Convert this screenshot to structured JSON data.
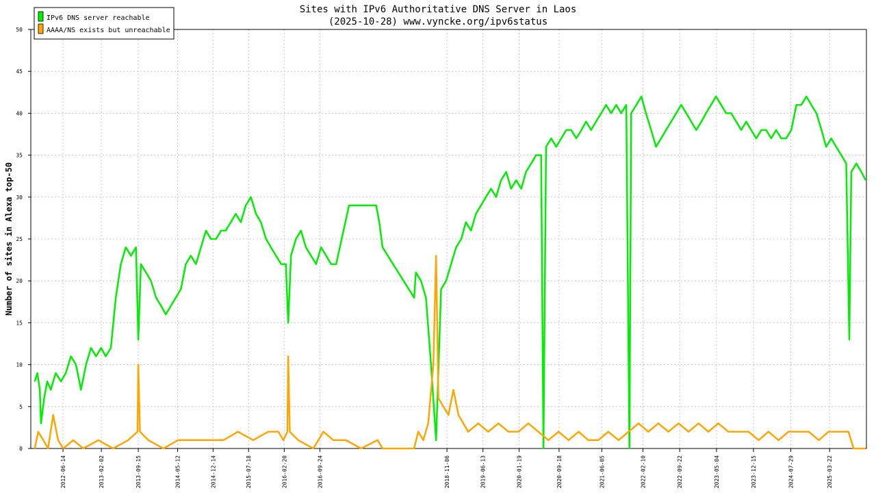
{
  "chart_data": {
    "type": "line",
    "title": "Sites with IPv6 Authoritative DNS Server in Laos",
    "subtitle": "(2025-10-28) www.vyncke.org/ipv6status",
    "xlabel": "",
    "ylabel": "Number of sites in Alexa top-50",
    "ylim": [
      0,
      50
    ],
    "yticks": [
      0,
      5,
      10,
      15,
      20,
      25,
      30,
      35,
      40,
      45,
      50
    ],
    "x_type": "date",
    "x_range": [
      "2011-12-01",
      "2025-11-01"
    ],
    "x_tick_labels": [
      "2012-06-14",
      "2013-02-02",
      "2013-09-15",
      "2014-05-12",
      "2014-12-14",
      "2015-07-18",
      "2016-02-20",
      "2016-09-24",
      "2018-11-06",
      "2019-06-13",
      "2020-01-19",
      "2020-09-18",
      "2021-06-05",
      "2022-02-10",
      "2022-09-22",
      "2023-05-04",
      "2023-12-15",
      "2024-07-29",
      "2025-03-22"
    ],
    "grid": true,
    "legend_position": "top-left",
    "colors": {
      "reachable": "#00ee00",
      "unreachable": "#ffa500"
    },
    "series": [
      {
        "name": "IPv6 DNS server reachable",
        "color": "#00ee00",
        "points": [
          [
            "2011-12-25",
            8
          ],
          [
            "2012-01-10",
            9
          ],
          [
            "2012-01-25",
            7
          ],
          [
            "2012-02-01",
            3
          ],
          [
            "2012-02-20",
            6
          ],
          [
            "2012-03-10",
            8
          ],
          [
            "2012-04-01",
            7
          ],
          [
            "2012-04-15",
            8
          ],
          [
            "2012-05-01",
            9
          ],
          [
            "2012-06-01",
            8
          ],
          [
            "2012-07-01",
            9
          ],
          [
            "2012-08-01",
            11
          ],
          [
            "2012-09-01",
            10
          ],
          [
            "2012-10-01",
            7
          ],
          [
            "2012-11-01",
            10
          ],
          [
            "2012-12-01",
            12
          ],
          [
            "2013-01-01",
            11
          ],
          [
            "2013-02-01",
            12
          ],
          [
            "2013-03-01",
            11
          ],
          [
            "2013-04-01",
            12
          ],
          [
            "2013-05-01",
            18
          ],
          [
            "2013-06-01",
            22
          ],
          [
            "2013-07-01",
            24
          ],
          [
            "2013-08-01",
            23
          ],
          [
            "2013-09-01",
            24
          ],
          [
            "2013-09-15",
            13
          ],
          [
            "2013-10-01",
            22
          ],
          [
            "2013-11-01",
            21
          ],
          [
            "2013-12-01",
            20
          ],
          [
            "2014-01-01",
            18
          ],
          [
            "2014-02-01",
            17
          ],
          [
            "2014-03-01",
            16
          ],
          [
            "2014-04-01",
            17
          ],
          [
            "2014-05-01",
            18
          ],
          [
            "2014-06-01",
            19
          ],
          [
            "2014-07-01",
            22
          ],
          [
            "2014-08-01",
            23
          ],
          [
            "2014-09-01",
            22
          ],
          [
            "2014-10-01",
            24
          ],
          [
            "2014-11-01",
            26
          ],
          [
            "2014-12-01",
            25
          ],
          [
            "2015-01-01",
            25
          ],
          [
            "2015-02-01",
            26
          ],
          [
            "2015-03-01",
            26
          ],
          [
            "2015-04-01",
            27
          ],
          [
            "2015-05-01",
            28
          ],
          [
            "2015-06-01",
            27
          ],
          [
            "2015-07-01",
            29
          ],
          [
            "2015-08-01",
            30
          ],
          [
            "2015-09-01",
            28
          ],
          [
            "2015-10-01",
            27
          ],
          [
            "2015-11-01",
            25
          ],
          [
            "2015-12-01",
            24
          ],
          [
            "2016-01-01",
            23
          ],
          [
            "2016-02-01",
            22
          ],
          [
            "2016-03-01",
            22
          ],
          [
            "2016-03-15",
            15
          ],
          [
            "2016-04-01",
            23
          ],
          [
            "2016-05-01",
            25
          ],
          [
            "2016-06-01",
            26
          ],
          [
            "2016-07-01",
            24
          ],
          [
            "2016-08-01",
            23
          ],
          [
            "2016-09-01",
            22
          ],
          [
            "2016-10-01",
            24
          ],
          [
            "2016-11-01",
            23
          ],
          [
            "2016-12-01",
            22
          ],
          [
            "2017-01-01",
            22
          ],
          [
            "2017-03-20",
            29
          ],
          [
            "2017-09-01",
            29
          ],
          [
            "2017-09-20",
            27
          ],
          [
            "2017-10-10",
            24
          ],
          [
            "2018-04-20",
            18
          ],
          [
            "2018-05-01",
            21
          ],
          [
            "2018-06-01",
            20
          ],
          [
            "2018-07-01",
            18
          ],
          [
            "2018-08-01",
            10
          ],
          [
            "2018-09-01",
            1
          ],
          [
            "2018-10-01",
            19
          ],
          [
            "2018-11-01",
            20
          ],
          [
            "2018-12-01",
            22
          ],
          [
            "2019-01-01",
            24
          ],
          [
            "2019-02-01",
            25
          ],
          [
            "2019-03-01",
            27
          ],
          [
            "2019-04-01",
            26
          ],
          [
            "2019-05-01",
            28
          ],
          [
            "2019-06-01",
            29
          ],
          [
            "2019-07-01",
            30
          ],
          [
            "2019-08-01",
            31
          ],
          [
            "2019-09-01",
            30
          ],
          [
            "2019-10-01",
            32
          ],
          [
            "2019-11-01",
            33
          ],
          [
            "2019-12-01",
            31
          ],
          [
            "2020-01-01",
            32
          ],
          [
            "2020-02-01",
            31
          ],
          [
            "2020-03-01",
            33
          ],
          [
            "2020-04-01",
            34
          ],
          [
            "2020-05-01",
            35
          ],
          [
            "2020-06-01",
            35
          ],
          [
            "2020-06-15",
            0
          ],
          [
            "2020-07-01",
            36
          ],
          [
            "2020-08-01",
            37
          ],
          [
            "2020-09-01",
            36
          ],
          [
            "2020-10-01",
            37
          ],
          [
            "2020-11-01",
            38
          ],
          [
            "2020-12-01",
            38
          ],
          [
            "2021-01-01",
            37
          ],
          [
            "2021-02-01",
            38
          ],
          [
            "2021-03-01",
            39
          ],
          [
            "2021-04-01",
            38
          ],
          [
            "2021-05-01",
            39
          ],
          [
            "2021-06-01",
            40
          ],
          [
            "2021-07-01",
            41
          ],
          [
            "2021-08-01",
            40
          ],
          [
            "2021-09-01",
            41
          ],
          [
            "2021-10-01",
            40
          ],
          [
            "2021-11-01",
            41
          ],
          [
            "2021-11-20",
            0
          ],
          [
            "2021-12-01",
            40
          ],
          [
            "2022-01-01",
            41
          ],
          [
            "2022-02-01",
            42
          ],
          [
            "2022-03-01",
            40
          ],
          [
            "2022-04-01",
            38
          ],
          [
            "2022-05-01",
            36
          ],
          [
            "2022-06-01",
            37
          ],
          [
            "2022-07-01",
            38
          ],
          [
            "2022-08-01",
            39
          ],
          [
            "2022-09-01",
            40
          ],
          [
            "2022-10-01",
            41
          ],
          [
            "2022-11-01",
            40
          ],
          [
            "2022-12-01",
            39
          ],
          [
            "2023-01-01",
            38
          ],
          [
            "2023-02-01",
            39
          ],
          [
            "2023-03-01",
            40
          ],
          [
            "2023-04-01",
            41
          ],
          [
            "2023-05-01",
            42
          ],
          [
            "2023-06-01",
            41
          ],
          [
            "2023-07-01",
            40
          ],
          [
            "2023-08-01",
            40
          ],
          [
            "2023-09-01",
            39
          ],
          [
            "2023-10-01",
            38
          ],
          [
            "2023-11-01",
            39
          ],
          [
            "2023-12-01",
            38
          ],
          [
            "2024-01-01",
            37
          ],
          [
            "2024-02-01",
            38
          ],
          [
            "2024-03-01",
            38
          ],
          [
            "2024-04-01",
            37
          ],
          [
            "2024-05-01",
            38
          ],
          [
            "2024-06-01",
            37
          ],
          [
            "2024-07-01",
            37
          ],
          [
            "2024-08-01",
            38
          ],
          [
            "2024-09-01",
            41
          ],
          [
            "2024-10-01",
            41
          ],
          [
            "2024-11-01",
            42
          ],
          [
            "2024-12-01",
            41
          ],
          [
            "2025-01-01",
            40
          ],
          [
            "2025-02-01",
            38
          ],
          [
            "2025-03-01",
            36
          ],
          [
            "2025-04-01",
            37
          ],
          [
            "2025-05-01",
            36
          ],
          [
            "2025-06-01",
            35
          ],
          [
            "2025-07-01",
            34
          ],
          [
            "2025-07-20",
            13
          ],
          [
            "2025-08-01",
            33
          ],
          [
            "2025-09-01",
            34
          ],
          [
            "2025-10-01",
            33
          ],
          [
            "2025-10-28",
            32
          ]
        ]
      },
      {
        "name": "AAAA/NS exists but unreachable",
        "color": "#ffa500",
        "points": [
          [
            "2011-12-25",
            0
          ],
          [
            "2012-01-15",
            2
          ],
          [
            "2012-02-15",
            1
          ],
          [
            "2012-03-15",
            0
          ],
          [
            "2012-04-15",
            4
          ],
          [
            "2012-05-15",
            1
          ],
          [
            "2012-06-15",
            0
          ],
          [
            "2012-08-15",
            1
          ],
          [
            "2012-10-15",
            0
          ],
          [
            "2013-01-15",
            1
          ],
          [
            "2013-04-15",
            0
          ],
          [
            "2013-07-15",
            1
          ],
          [
            "2013-09-10",
            2
          ],
          [
            "2013-09-15",
            10
          ],
          [
            "2013-09-25",
            2
          ],
          [
            "2013-11-15",
            1
          ],
          [
            "2014-02-15",
            0
          ],
          [
            "2014-05-15",
            1
          ],
          [
            "2014-08-15",
            1
          ],
          [
            "2014-11-15",
            1
          ],
          [
            "2015-02-15",
            1
          ],
          [
            "2015-05-15",
            2
          ],
          [
            "2015-08-15",
            1
          ],
          [
            "2015-11-15",
            2
          ],
          [
            "2016-01-15",
            2
          ],
          [
            "2016-02-15",
            1
          ],
          [
            "2016-03-10",
            2
          ],
          [
            "2016-03-15",
            11
          ],
          [
            "2016-03-25",
            2
          ],
          [
            "2016-05-15",
            1
          ],
          [
            "2016-08-15",
            0
          ],
          [
            "2016-10-15",
            2
          ],
          [
            "2016-12-15",
            1
          ],
          [
            "2017-03-01",
            1
          ],
          [
            "2017-06-01",
            0
          ],
          [
            "2017-09-10",
            1
          ],
          [
            "2017-10-10",
            0
          ],
          [
            "2018-04-20",
            0
          ],
          [
            "2018-05-15",
            2
          ],
          [
            "2018-06-15",
            1
          ],
          [
            "2018-07-15",
            3
          ],
          [
            "2018-08-15",
            10
          ],
          [
            "2018-09-01",
            23
          ],
          [
            "2018-09-15",
            6
          ],
          [
            "2018-10-15",
            5
          ],
          [
            "2018-11-15",
            4
          ],
          [
            "2018-12-15",
            7
          ],
          [
            "2019-01-15",
            4
          ],
          [
            "2019-03-15",
            2
          ],
          [
            "2019-05-15",
            3
          ],
          [
            "2019-07-15",
            2
          ],
          [
            "2019-09-15",
            3
          ],
          [
            "2019-11-15",
            2
          ],
          [
            "2020-01-15",
            2
          ],
          [
            "2020-03-15",
            3
          ],
          [
            "2020-05-15",
            2
          ],
          [
            "2020-07-15",
            1
          ],
          [
            "2020-09-15",
            2
          ],
          [
            "2020-11-15",
            1
          ],
          [
            "2021-01-15",
            2
          ],
          [
            "2021-03-15",
            1
          ],
          [
            "2021-05-15",
            1
          ],
          [
            "2021-07-15",
            2
          ],
          [
            "2021-09-15",
            1
          ],
          [
            "2021-11-15",
            2
          ],
          [
            "2022-01-15",
            3
          ],
          [
            "2022-03-15",
            2
          ],
          [
            "2022-05-15",
            3
          ],
          [
            "2022-07-15",
            2
          ],
          [
            "2022-09-15",
            3
          ],
          [
            "2022-11-15",
            2
          ],
          [
            "2023-01-15",
            3
          ],
          [
            "2023-03-15",
            2
          ],
          [
            "2023-05-15",
            3
          ],
          [
            "2023-07-15",
            2
          ],
          [
            "2023-09-15",
            2
          ],
          [
            "2023-11-15",
            2
          ],
          [
            "2024-01-15",
            1
          ],
          [
            "2024-03-15",
            2
          ],
          [
            "2024-05-15",
            1
          ],
          [
            "2024-07-15",
            2
          ],
          [
            "2024-09-15",
            2
          ],
          [
            "2024-11-15",
            2
          ],
          [
            "2025-01-15",
            1
          ],
          [
            "2025-03-15",
            2
          ],
          [
            "2025-05-15",
            2
          ],
          [
            "2025-07-15",
            2
          ],
          [
            "2025-08-15",
            0
          ],
          [
            "2025-10-28",
            0
          ]
        ]
      }
    ]
  }
}
